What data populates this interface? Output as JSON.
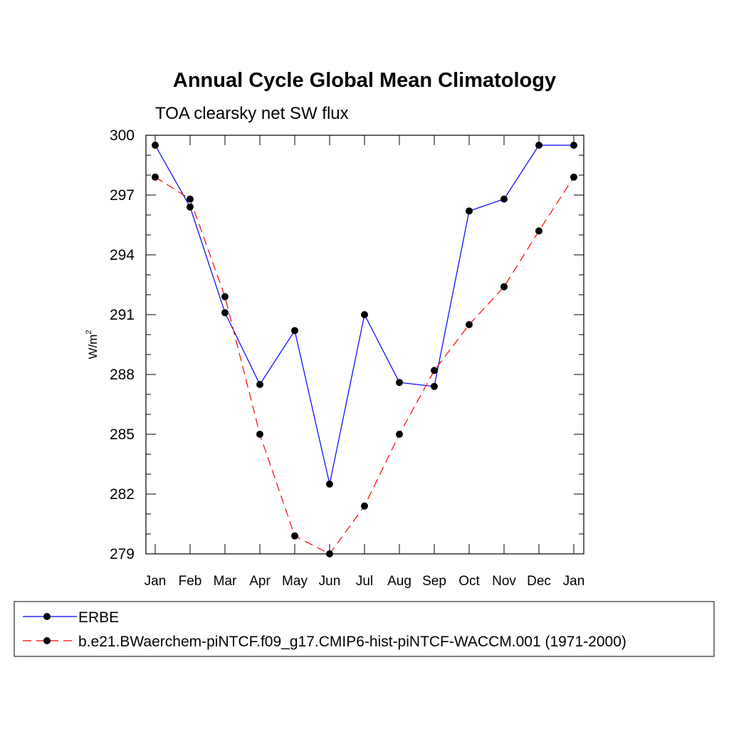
{
  "chart_data": {
    "type": "line",
    "title": "Annual Cycle Global Mean Climatology",
    "subtitle": "TOA clearsky net SW flux",
    "ylabel": "W/m",
    "ylabel_sup": "2",
    "xlabel": "",
    "categories": [
      "Jan",
      "Feb",
      "Mar",
      "Apr",
      "May",
      "Jun",
      "Jul",
      "Aug",
      "Sep",
      "Oct",
      "Nov",
      "Dec",
      "Jan"
    ],
    "ylim": [
      279,
      300
    ],
    "yticks": [
      "279",
      "282",
      "285",
      "288",
      "291",
      "294",
      "297",
      "300"
    ],
    "legend_position": "bottom",
    "series": [
      {
        "name": "ERBE",
        "color": "#0000ff",
        "dashed": false,
        "values": [
          299.5,
          296.4,
          291.1,
          287.5,
          290.2,
          282.5,
          291.0,
          287.6,
          287.4,
          296.2,
          296.8,
          299.5,
          299.5
        ]
      },
      {
        "name": "b.e21.BWaerchem-piNTCF.f09_g17.CMIP6-hist-piNTCF-WACCM.001 (1971-2000)",
        "color": "#ff0000",
        "dashed": true,
        "values": [
          297.9,
          296.8,
          291.9,
          285.0,
          279.9,
          279.0,
          281.4,
          285.0,
          288.2,
          290.5,
          292.4,
          295.2,
          297.9
        ]
      }
    ]
  }
}
